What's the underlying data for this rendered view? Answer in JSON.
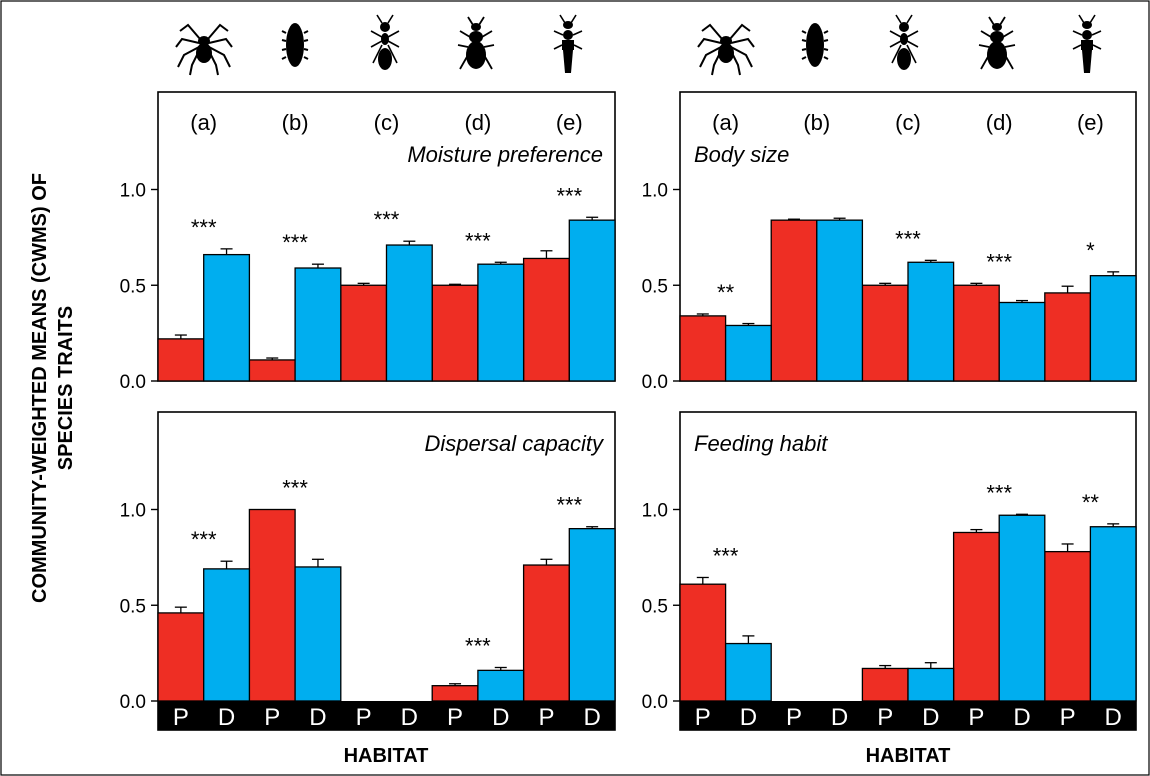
{
  "figure": {
    "y_axis_title_line1": "COMMUNITY-WEIGHTED MEANS (CWMS) OF",
    "y_axis_title_line2": "SPECIES TRAITS",
    "x_axis_title_left": "HABITAT",
    "x_axis_title_right": "HABITAT",
    "taxon_icons": [
      "spider-icon",
      "woodlouse-icon",
      "ant-icon",
      "ground-beetle-icon",
      "rove-beetle-icon"
    ],
    "colors": {
      "P": "#ee2e24",
      "D": "#00aeef",
      "habitat_strip": "#000000"
    }
  },
  "chart_data": [
    {
      "type": "bar",
      "title": "Moisture preference",
      "groups": [
        "(a)",
        "(b)",
        "(c)",
        "(d)",
        "(e)"
      ],
      "x_ticks": [
        "P",
        "D",
        "P",
        "D",
        "P",
        "D",
        "P",
        "D",
        "P",
        "D"
      ],
      "series": [
        {
          "name": "P",
          "values": [
            0.22,
            0.11,
            0.5,
            0.5,
            0.64
          ],
          "errors": [
            0.02,
            0.01,
            0.01,
            0.005,
            0.04
          ]
        },
        {
          "name": "D",
          "values": [
            0.66,
            0.59,
            0.71,
            0.61,
            0.84
          ],
          "errors": [
            0.03,
            0.02,
            0.02,
            0.01,
            0.015
          ]
        }
      ],
      "significance": [
        "***",
        "***",
        "***",
        "***",
        "***"
      ],
      "y_ticks": [
        "0.0",
        "0.5",
        "1.0"
      ],
      "ylim": [
        0,
        1.4
      ],
      "xlabel": "",
      "grid": false
    },
    {
      "type": "bar",
      "title": "Body size",
      "groups": [
        "(a)",
        "(b)",
        "(c)",
        "(d)",
        "(e)"
      ],
      "x_ticks": [
        "P",
        "D",
        "P",
        "D",
        "P",
        "D",
        "P",
        "D",
        "P",
        "D"
      ],
      "series": [
        {
          "name": "P",
          "values": [
            0.34,
            0.84,
            0.5,
            0.5,
            0.46
          ],
          "errors": [
            0.01,
            0.005,
            0.01,
            0.01,
            0.035
          ]
        },
        {
          "name": "D",
          "values": [
            0.29,
            0.84,
            0.62,
            0.41,
            0.55
          ],
          "errors": [
            0.01,
            0.01,
            0.01,
            0.01,
            0.02
          ]
        }
      ],
      "significance": [
        "**",
        "",
        "***",
        "***",
        "*"
      ],
      "y_ticks": [
        "0.0",
        "0.5",
        "1.0"
      ],
      "ylim": [
        0,
        1.4
      ],
      "xlabel": "",
      "grid": false
    },
    {
      "type": "bar",
      "title": "Dispersal capacity",
      "groups": [
        "(a)",
        "(b)",
        "(c)",
        "(d)",
        "(e)"
      ],
      "x_ticks": [
        "P",
        "D",
        "P",
        "D",
        "P",
        "D",
        "P",
        "D",
        "P",
        "D"
      ],
      "series": [
        {
          "name": "P",
          "values": [
            0.46,
            1.0,
            null,
            0.08,
            0.71
          ],
          "errors": [
            0.03,
            0,
            0,
            0.01,
            0.03
          ]
        },
        {
          "name": "D",
          "values": [
            0.69,
            0.7,
            null,
            0.16,
            0.9
          ],
          "errors": [
            0.04,
            0.04,
            0,
            0.015,
            0.01
          ]
        }
      ],
      "significance": [
        "***",
        "***",
        "",
        "***",
        "***"
      ],
      "y_ticks": [
        "0.0",
        "0.5",
        "1.0"
      ],
      "ylim": [
        0,
        1.4
      ],
      "xlabel": "HABITAT",
      "grid": false
    },
    {
      "type": "bar",
      "title": "Feeding habit",
      "groups": [
        "(a)",
        "(b)",
        "(c)",
        "(d)",
        "(e)"
      ],
      "x_ticks": [
        "P",
        "D",
        "P",
        "D",
        "P",
        "D",
        "P",
        "D",
        "P",
        "D"
      ],
      "series": [
        {
          "name": "P",
          "values": [
            0.61,
            null,
            0.17,
            0.88,
            0.78
          ],
          "errors": [
            0.035,
            0,
            0.015,
            0.015,
            0.04
          ]
        },
        {
          "name": "D",
          "values": [
            0.3,
            null,
            0.17,
            0.97,
            0.91
          ],
          "errors": [
            0.04,
            0,
            0.03,
            0.005,
            0.015
          ]
        }
      ],
      "significance": [
        "***",
        "",
        "",
        "***",
        "**"
      ],
      "y_ticks": [
        "0.0",
        "0.5",
        "1.0"
      ],
      "ylim": [
        0,
        1.4
      ],
      "xlabel": "HABITAT",
      "grid": false
    }
  ]
}
